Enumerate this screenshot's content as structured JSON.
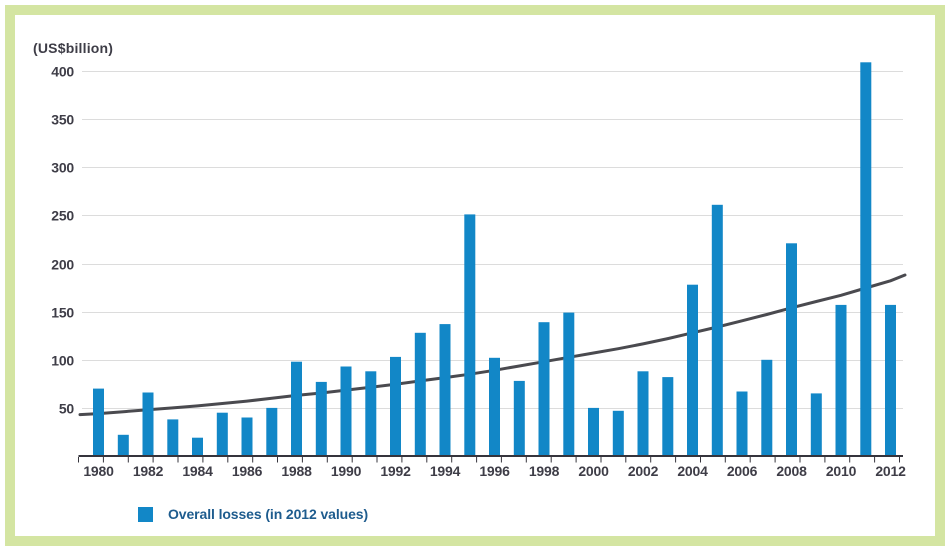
{
  "chart": {
    "unit_label": "(US$billion)",
    "legend": {
      "label": "Overall losses (in 2012 values)"
    }
  },
  "colors": {
    "bar": "#1287c7",
    "trend": "#4a4a4f",
    "frame": "#d4e5a2",
    "grid": "#dcdcdc",
    "axis": "#35343c",
    "tick_label": "#3e3d47",
    "legend_text": "#1e5c8e"
  },
  "chart_data": {
    "type": "bar",
    "title": "",
    "ylabel": "(US$billion)",
    "xlabel": "",
    "ylim": [
      0,
      400
    ],
    "grid": true,
    "legend_position": "bottom-left",
    "categories": [
      "1980",
      "1981",
      "1982",
      "1983",
      "1984",
      "1985",
      "1986",
      "1987",
      "1988",
      "1989",
      "1990",
      "1991",
      "1992",
      "1993",
      "1994",
      "1995",
      "1996",
      "1997",
      "1998",
      "1999",
      "2000",
      "2001",
      "2002",
      "2003",
      "2004",
      "2005",
      "2006",
      "2007",
      "2008",
      "2009",
      "2010",
      "2011",
      "2012"
    ],
    "xtick_labels": [
      "1980",
      "1982",
      "1984",
      "1986",
      "1988",
      "1990",
      "1992",
      "1994",
      "1996",
      "1998",
      "2000",
      "2002",
      "2004",
      "2006",
      "2008",
      "2010",
      "2012"
    ],
    "yticks": [
      50,
      100,
      150,
      200,
      250,
      300,
      350,
      400
    ],
    "series": [
      {
        "name": "Overall losses (in 2012 values)",
        "type": "bar",
        "color": "#1287c7",
        "values": [
          70,
          22,
          66,
          38,
          19,
          45,
          40,
          50,
          98,
          77,
          93,
          88,
          103,
          128,
          137,
          251,
          102,
          78,
          139,
          149,
          50,
          47,
          88,
          82,
          178,
          261,
          67,
          100,
          221,
          65,
          157,
          409,
          157
        ]
      },
      {
        "name": "Trend line",
        "type": "line",
        "color": "#4a4a4f",
        "values": [
          44,
          46,
          48,
          50,
          52,
          54.5,
          57,
          60,
          63,
          65.5,
          68.5,
          71.5,
          74.5,
          78,
          81.5,
          85,
          89,
          93.5,
          98,
          102.5,
          107,
          111.5,
          116.5,
          122,
          128,
          134,
          140.5,
          147,
          154,
          160.5,
          167,
          174.5,
          182
        ],
        "left_edge_value": 43,
        "right_edge_value": 188
      }
    ]
  }
}
